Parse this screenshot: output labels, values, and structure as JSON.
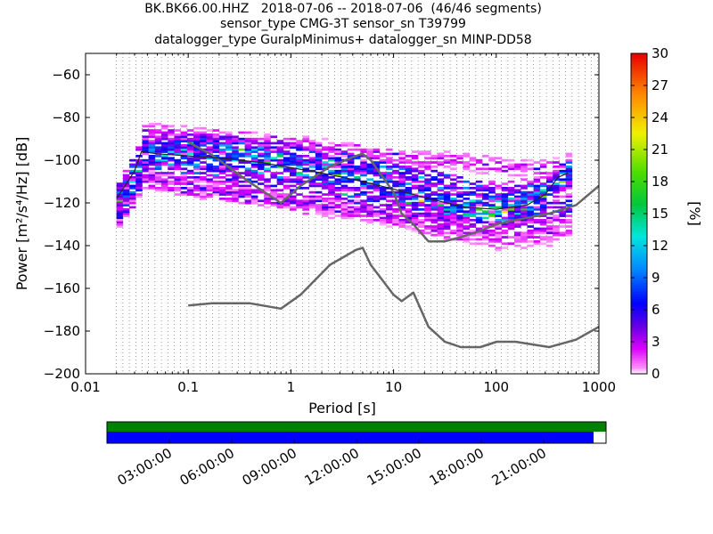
{
  "title_lines": [
    "BK.BK66.00.HHZ   2018-07-06 -- 2018-07-06  (46/46 segments)",
    "sensor_type CMG-3T sensor_sn T39799",
    "datalogger_type GuralpMinimus+ datalogger_sn MINP-DD58"
  ],
  "chart_data": {
    "type": "heatmap",
    "xlabel": "Period [s]",
    "ylabel": "Power [m²/s⁴/Hz] [dB]",
    "xscale": "log",
    "xlim": [
      0.01,
      1000
    ],
    "ylim": [
      -200,
      -50
    ],
    "x_ticks": [
      {
        "v": 0.01,
        "label": "0.01"
      },
      {
        "v": 0.1,
        "label": "0.1"
      },
      {
        "v": 1,
        "label": "1"
      },
      {
        "v": 10,
        "label": "10"
      },
      {
        "v": 100,
        "label": "100"
      },
      {
        "v": 1000,
        "label": "1000"
      }
    ],
    "y_ticks": [
      {
        "v": -60,
        "label": "−60"
      },
      {
        "v": -80,
        "label": "−80"
      },
      {
        "v": -100,
        "label": "−100"
      },
      {
        "v": -120,
        "label": "−120"
      },
      {
        "v": -140,
        "label": "−140"
      },
      {
        "v": -160,
        "label": "−160"
      },
      {
        "v": -180,
        "label": "−180"
      },
      {
        "v": -200,
        "label": "−200"
      }
    ],
    "grid": "dotted vertical lines at PSD frequency bins",
    "colorbar": {
      "label": "[%]",
      "range": [
        0,
        30
      ],
      "ticks": [
        {
          "v": 0,
          "label": "0"
        },
        {
          "v": 3,
          "label": "3"
        },
        {
          "v": 6,
          "label": "6"
        },
        {
          "v": 9,
          "label": "9"
        },
        {
          "v": 12,
          "label": "12"
        },
        {
          "v": 15,
          "label": "15"
        },
        {
          "v": 18,
          "label": "18"
        },
        {
          "v": 21,
          "label": "21"
        },
        {
          "v": 24,
          "label": "24"
        },
        {
          "v": 27,
          "label": "27"
        },
        {
          "v": 30,
          "label": "30"
        }
      ]
    },
    "series": [
      {
        "kind": "noise-model",
        "color": "#666666",
        "x": [
          0.1,
          0.17,
          0.4,
          0.8,
          1.24,
          2.4,
          4.3,
          5.0,
          6.0,
          10.0,
          12.0,
          15.6,
          21.9,
          31.6,
          45.0,
          70.0,
          101.0,
          154.0,
          328.0,
          600.0,
          1000.0
        ],
        "y": [
          -168,
          -167,
          -167,
          -169.5,
          -163,
          -149,
          -142,
          -141,
          -149,
          -163,
          -166,
          -162,
          -178,
          -185,
          -187.5,
          -187.5,
          -185,
          -185,
          -187.5,
          -184,
          -178
        ]
      },
      {
        "kind": "noise-model",
        "color": "#666666",
        "x": [
          0.1,
          0.17,
          0.4,
          0.8,
          1.24,
          2.4,
          4.3,
          5.0,
          6.0,
          10.0,
          12.0,
          15.6,
          21.9,
          31.6,
          45.0,
          70.0,
          101.0,
          154.0,
          328.0,
          600.0,
          1000.0
        ],
        "y": [
          -91.5,
          -97.5,
          -110.5,
          -120,
          -112,
          -103,
          -98,
          -97,
          -100,
          -115,
          -125,
          -130,
          -138,
          -138,
          -136,
          -133,
          -130,
          -128,
          -125,
          -121,
          -112
        ]
      },
      {
        "kind": "mean",
        "color": "#222222",
        "x": [
          0.02,
          0.025,
          0.03,
          0.035,
          0.05,
          0.1,
          0.2,
          0.5,
          1,
          2,
          5,
          10,
          20,
          50,
          100,
          200,
          300,
          400,
          500
        ],
        "y": [
          -118,
          -111,
          -105,
          -96,
          -97,
          -98,
          -99,
          -101,
          -103.5,
          -106,
          -110,
          -113.5,
          -117.5,
          -122,
          -123,
          -121,
          -116,
          -108,
          -106
        ]
      }
    ],
    "ppsd_bands": [
      {
        "x": [
          0.02,
          0.025,
          0.03,
          0.035,
          0.05,
          0.1,
          0.2,
          0.5,
          1,
          2,
          5,
          10,
          20,
          50,
          100,
          200,
          300,
          400,
          500
        ],
        "y": [
          -118,
          -111,
          -105,
          -96,
          -97,
          -98,
          -99,
          -101,
          -103.5,
          -106,
          -110,
          -113.5,
          -117.5,
          -122,
          -123,
          -121,
          -116,
          -108,
          -106
        ],
        "spread": 6,
        "pct": 6.5
      },
      {
        "x": [
          0.02,
          0.035,
          0.1,
          0.3,
          1,
          3,
          10,
          30,
          100,
          300,
          500
        ],
        "y": [
          -114,
          -93,
          -92,
          -94,
          -97,
          -100,
          -105,
          -110,
          -116,
          -112,
          -108
        ],
        "spread": 4,
        "pct": 5
      },
      {
        "x": [
          0.02,
          0.035,
          0.1,
          0.3,
          1,
          3,
          10,
          30,
          100,
          300,
          500
        ],
        "y": [
          -124,
          -104,
          -106,
          -108,
          -112,
          -116,
          -119,
          -124,
          -126,
          -124,
          -120
        ],
        "spread": 4,
        "pct": 4
      },
      {
        "x": [
          0.02,
          0.035,
          0.1,
          0.3,
          1,
          3,
          10,
          30,
          100,
          300,
          500
        ],
        "y": [
          -128,
          -110,
          -114,
          -117,
          -119,
          -122,
          -126,
          -130,
          -133,
          -131,
          -126
        ],
        "spread": 3,
        "pct": 2.5
      },
      {
        "x": [
          0.02,
          0.035,
          0.1,
          0.3,
          1,
          3,
          10,
          30,
          100,
          300,
          500
        ],
        "y": [
          -127,
          -107,
          -112,
          -115,
          -121,
          -124,
          -128,
          -134,
          -138,
          -136,
          -132
        ],
        "spread": 3,
        "pct": 1.5
      },
      {
        "x": [
          0.035,
          0.1,
          0.3,
          1,
          3,
          10,
          30,
          100,
          300,
          500
        ],
        "y": [
          -86,
          -88,
          -90,
          -92,
          -95,
          -98,
          -100,
          -103,
          -104,
          -100
        ],
        "spread": 3,
        "pct": 2
      }
    ]
  },
  "timeline": {
    "colors": {
      "coverage": "#0000ff",
      "data": "#008000"
    },
    "data_coverage": 1.0,
    "segment_coverage": 0.975,
    "ticks": [
      {
        "v": 0.125,
        "label": "03:00:00"
      },
      {
        "v": 0.25,
        "label": "06:00:00"
      },
      {
        "v": 0.375,
        "label": "09:00:00"
      },
      {
        "v": 0.5,
        "label": "12:00:00"
      },
      {
        "v": 0.625,
        "label": "15:00:00"
      },
      {
        "v": 0.75,
        "label": "18:00:00"
      },
      {
        "v": 0.875,
        "label": "21:00:00"
      }
    ]
  }
}
